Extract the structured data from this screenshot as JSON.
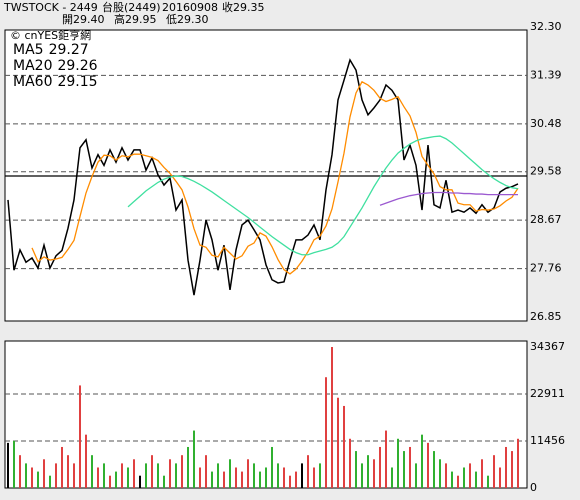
{
  "header": {
    "symbol": "TWSTOCK  -  2449",
    "name": "台股(2449)",
    "date": "20160908",
    "close": "收29.35",
    "open": "開29.40",
    "high": "高29.95",
    "low": "低29.30",
    "source": "© cnYES鉅亨網"
  },
  "chart_data": [
    {
      "type": "line",
      "ylim": [
        26.85,
        32.3
      ],
      "yticks": [
        {
          "value": 32.3,
          "label": "32.30"
        },
        31.39,
        30.48,
        29.58,
        28.67,
        27.76,
        26.85
      ],
      "grid": true,
      "ref_line": 29.5,
      "series": [
        {
          "color": "#000000",
          "values": [
            29.05,
            27.73,
            28.11,
            27.88,
            27.96,
            27.77,
            28.2,
            27.77,
            28.0,
            28.1,
            28.52,
            29.05,
            30.03,
            30.18,
            29.65,
            29.9,
            29.7,
            29.99,
            29.76,
            30.03,
            29.8,
            29.99,
            29.99,
            29.61,
            29.84,
            29.52,
            29.33,
            29.46,
            28.86,
            29.05,
            27.92,
            27.26,
            27.92,
            28.67,
            28.3,
            27.73,
            28.2,
            27.36,
            28.11,
            28.58,
            28.67,
            28.49,
            28.3,
            27.83,
            27.55,
            27.49,
            27.51,
            27.92,
            28.3,
            28.3,
            28.39,
            28.58,
            28.3,
            29.24,
            29.9,
            30.93,
            31.3,
            31.68,
            31.49,
            30.93,
            30.65,
            30.78,
            30.93,
            31.21,
            31.11,
            30.93,
            29.8,
            30.08,
            29.7,
            28.86,
            30.08,
            28.96,
            28.9,
            29.42,
            28.82,
            28.86,
            28.82,
            28.9,
            28.8,
            28.96,
            28.82,
            28.9,
            29.2,
            29.27,
            29.3,
            29.35
          ]
        },
        {
          "name": "MA5",
          "color": "#ff8c00",
          "values": [
            null,
            null,
            null,
            null,
            28.15,
            27.89,
            27.98,
            27.92,
            27.94,
            27.97,
            28.12,
            28.29,
            28.74,
            29.18,
            29.49,
            29.76,
            29.89,
            29.88,
            29.8,
            29.88,
            29.86,
            29.91,
            29.91,
            29.88,
            29.85,
            29.79,
            29.66,
            29.55,
            29.4,
            29.24,
            28.92,
            28.51,
            28.2,
            28.16,
            28.01,
            27.98,
            28.16,
            28.05,
            27.94,
            28.0,
            28.18,
            28.24,
            28.43,
            28.37,
            28.17,
            27.93,
            27.74,
            27.66,
            27.75,
            27.9,
            28.08,
            28.3,
            28.37,
            28.56,
            28.88,
            29.39,
            29.93,
            30.61,
            31.06,
            31.27,
            31.21,
            31.11,
            30.96,
            30.9,
            30.94,
            30.99,
            30.8,
            30.63,
            30.32,
            29.87,
            29.7,
            29.54,
            29.3,
            29.24,
            29.24,
            28.99,
            28.96,
            28.96,
            28.84,
            28.87,
            28.86,
            28.88,
            28.94,
            29.03,
            29.1,
            29.27
          ]
        },
        {
          "name": "MA20",
          "color": "#40e0a0",
          "values": [
            null,
            null,
            null,
            null,
            null,
            null,
            null,
            null,
            null,
            null,
            null,
            null,
            null,
            null,
            null,
            null,
            null,
            null,
            null,
            null,
            28.92,
            29.02,
            29.12,
            29.22,
            29.3,
            29.38,
            29.44,
            29.48,
            29.5,
            29.49,
            29.45,
            29.4,
            29.34,
            29.27,
            29.2,
            29.12,
            29.04,
            28.96,
            28.88,
            28.8,
            28.72,
            28.63,
            28.54,
            28.45,
            28.36,
            28.28,
            28.2,
            28.12,
            28.06,
            28.02,
            28.02,
            28.06,
            28.09,
            28.12,
            28.16,
            28.24,
            28.36,
            28.54,
            28.72,
            28.9,
            29.1,
            29.3,
            29.48,
            29.65,
            29.8,
            29.93,
            30.02,
            30.1,
            30.16,
            30.2,
            30.22,
            30.24,
            30.25,
            30.2,
            30.12,
            30.02,
            29.92,
            29.82,
            29.72,
            29.62,
            29.53,
            29.45,
            29.38,
            29.32,
            29.28,
            29.26
          ]
        },
        {
          "name": "MA60",
          "color": "#9b59d0",
          "values": [
            null,
            null,
            null,
            null,
            null,
            null,
            null,
            null,
            null,
            null,
            null,
            null,
            null,
            null,
            null,
            null,
            null,
            null,
            null,
            null,
            null,
            null,
            null,
            null,
            null,
            null,
            null,
            null,
            null,
            null,
            null,
            null,
            null,
            null,
            null,
            null,
            null,
            null,
            null,
            null,
            null,
            null,
            null,
            null,
            null,
            null,
            null,
            null,
            null,
            null,
            null,
            null,
            null,
            null,
            null,
            null,
            null,
            null,
            null,
            null,
            null,
            null,
            28.95,
            28.99,
            29.03,
            29.07,
            29.1,
            29.13,
            29.15,
            29.17,
            29.18,
            29.19,
            29.19,
            29.19,
            29.18,
            29.18,
            29.17,
            29.17,
            29.16,
            29.16,
            29.15,
            29.15,
            29.15,
            29.15,
            29.15,
            29.15
          ]
        }
      ]
    },
    {
      "type": "bar",
      "ylim": [
        0,
        34367
      ],
      "yticks": [
        34367,
        22911,
        11456,
        0
      ],
      "grid": true,
      "up_color": "#e04040",
      "down_color": "#30b030",
      "flat_color": "#000000",
      "values": [
        11000,
        11500,
        8000,
        6000,
        5000,
        4000,
        7000,
        3000,
        6000,
        10000,
        8000,
        6000,
        25000,
        13000,
        8000,
        5000,
        6000,
        3000,
        4000,
        6000,
        5000,
        7000,
        3000,
        6000,
        8000,
        6000,
        3000,
        7000,
        6000,
        8000,
        10000,
        14000,
        5000,
        8000,
        4000,
        6000,
        4000,
        7000,
        5000,
        4000,
        7000,
        6000,
        4000,
        5000,
        10000,
        6000,
        5000,
        3000,
        4000,
        6000,
        8000,
        5000,
        6000,
        27000,
        34367,
        22000,
        20000,
        12000,
        9000,
        6000,
        8000,
        7000,
        10000,
        14000,
        5000,
        12000,
        9000,
        10000,
        6000,
        13000,
        11000,
        9000,
        7000,
        6000,
        4000,
        3000,
        5000,
        6000,
        4000,
        7000,
        3000,
        8000,
        5000,
        10000,
        9000,
        12000
      ]
    }
  ]
}
